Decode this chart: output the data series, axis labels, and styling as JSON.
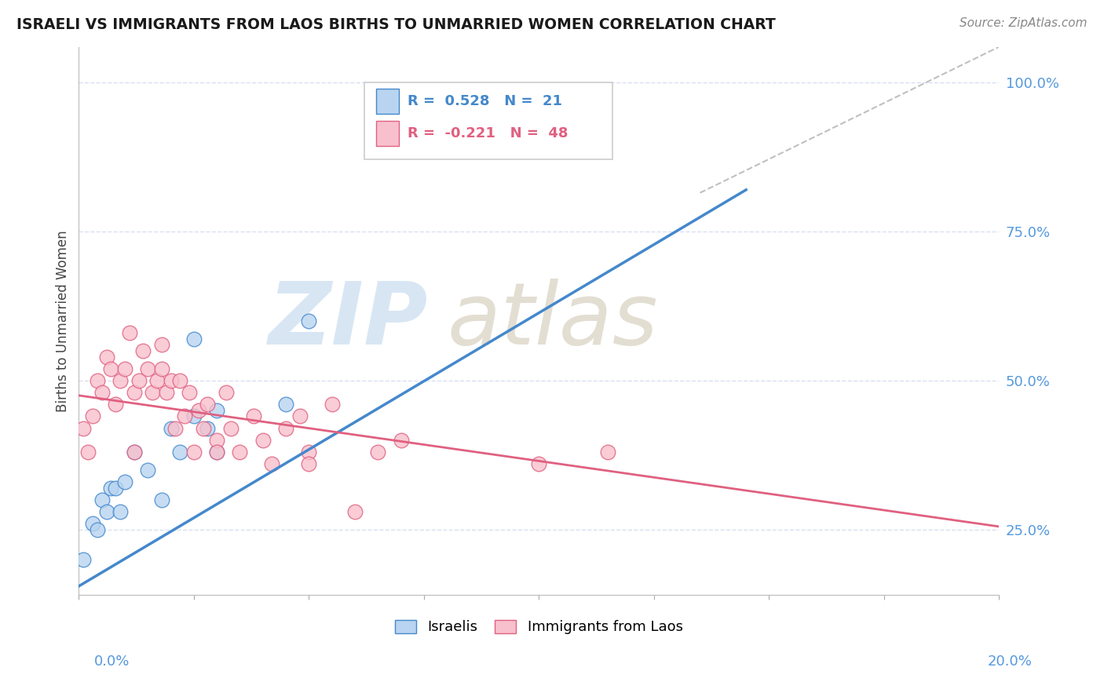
{
  "title": "ISRAELI VS IMMIGRANTS FROM LAOS BIRTHS TO UNMARRIED WOMEN CORRELATION CHART",
  "source": "Source: ZipAtlas.com",
  "ylabel": "Births to Unmarried Women",
  "legend_label_blue": "Israelis",
  "legend_label_pink": "Immigrants from Laos",
  "r_blue": "0.528",
  "n_blue": "21",
  "r_pink": "-0.221",
  "n_pink": "48",
  "blue_fill_color": "#b8d4f0",
  "blue_line_color": "#4488cc",
  "pink_fill_color": "#f8c0cc",
  "pink_line_color": "#e06080",
  "dash_color": "#c0c0c0",
  "grid_color": "#d8e0f0",
  "right_tick_color": "#5599dd",
  "watermark_zip_color": "#c8dcf0",
  "watermark_atlas_color": "#d8d0c0",
  "right_yticks": [
    0.25,
    0.5,
    0.75,
    1.0
  ],
  "right_ylabels": [
    "25.0%",
    "50.0%",
    "75.0%",
    "100.0%"
  ],
  "xlim": [
    0.0,
    0.2
  ],
  "ylim": [
    0.14,
    1.06
  ],
  "blue_x": [
    0.001,
    0.003,
    0.004,
    0.005,
    0.006,
    0.007,
    0.008,
    0.009,
    0.01,
    0.012,
    0.015,
    0.018,
    0.02,
    0.022,
    0.025,
    0.028,
    0.03,
    0.03,
    0.045,
    0.05,
    0.025
  ],
  "blue_y": [
    0.2,
    0.26,
    0.25,
    0.3,
    0.28,
    0.32,
    0.32,
    0.28,
    0.33,
    0.38,
    0.35,
    0.3,
    0.42,
    0.38,
    0.44,
    0.42,
    0.38,
    0.45,
    0.46,
    0.6,
    0.57
  ],
  "pink_x": [
    0.001,
    0.002,
    0.003,
    0.004,
    0.005,
    0.006,
    0.007,
    0.008,
    0.009,
    0.01,
    0.011,
    0.012,
    0.013,
    0.014,
    0.015,
    0.016,
    0.017,
    0.018,
    0.019,
    0.02,
    0.021,
    0.022,
    0.023,
    0.024,
    0.025,
    0.026,
    0.027,
    0.028,
    0.03,
    0.032,
    0.033,
    0.035,
    0.038,
    0.04,
    0.042,
    0.045,
    0.048,
    0.05,
    0.055,
    0.06,
    0.065,
    0.07,
    0.1,
    0.115,
    0.05,
    0.03,
    0.018,
    0.012
  ],
  "pink_y": [
    0.42,
    0.38,
    0.44,
    0.5,
    0.48,
    0.54,
    0.52,
    0.46,
    0.5,
    0.52,
    0.58,
    0.48,
    0.5,
    0.55,
    0.52,
    0.48,
    0.5,
    0.52,
    0.48,
    0.5,
    0.42,
    0.5,
    0.44,
    0.48,
    0.38,
    0.45,
    0.42,
    0.46,
    0.4,
    0.48,
    0.42,
    0.38,
    0.44,
    0.4,
    0.36,
    0.42,
    0.44,
    0.38,
    0.46,
    0.28,
    0.38,
    0.4,
    0.36,
    0.38,
    0.36,
    0.38,
    0.56,
    0.38
  ],
  "blue_line_x0": 0.0,
  "blue_line_y0": 0.155,
  "blue_line_x1": 0.145,
  "blue_line_y1": 0.82,
  "pink_line_x0": 0.0,
  "pink_line_y0": 0.475,
  "pink_line_x1": 0.2,
  "pink_line_y1": 0.255,
  "dash_line_x0": 0.135,
  "dash_line_y0": 0.815,
  "dash_line_x1": 0.2,
  "dash_line_y1": 1.06
}
